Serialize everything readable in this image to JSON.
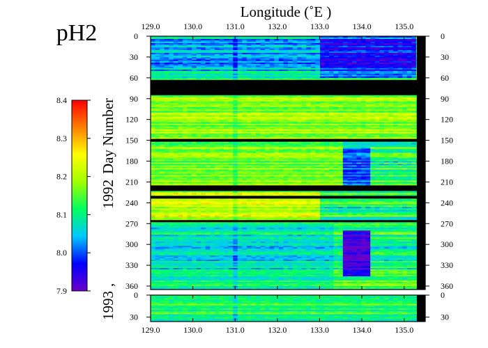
{
  "chart_data": {
    "type": "heatmap",
    "title": "pH2",
    "xlabel": "Longitude (˚E )",
    "ylabel_year1": "1992",
    "ylabel_sep": ",",
    "ylabel_dayword": "Day Number",
    "ylabel_year2": "1993",
    "x_range": [
      129.0,
      135.5
    ],
    "x_ticks": [
      "129.0",
      "130.0",
      "131.0",
      "132.0",
      "133.0",
      "134.0",
      "135.0"
    ],
    "panel_1992": {
      "day_range": [
        0,
        365
      ],
      "y_ticks": [
        "0",
        "30",
        "60",
        "90",
        "120",
        "150",
        "180",
        "210",
        "240",
        "270",
        "300",
        "330",
        "360"
      ]
    },
    "panel_1993": {
      "day_range": [
        0,
        36
      ],
      "y_ticks": [
        "0",
        "30"
      ]
    },
    "colorbar": {
      "range": [
        7.9,
        8.4
      ],
      "tick_labels": [
        "8.4",
        "8.3",
        "8.2",
        "8.1",
        "8.0",
        "7.9"
      ],
      "colors": [
        "#6a00c8",
        "#0000ff",
        "#00c8ff",
        "#00ff60",
        "#a0ff00",
        "#ffff00",
        "#ff8000",
        "#ff0000"
      ]
    },
    "no_data_day_ranges_1992": [
      [
        63,
        85
      ],
      [
        148,
        152
      ],
      [
        215,
        223
      ],
      [
        230,
        234
      ],
      [
        265,
        268
      ]
    ],
    "no_data_longitude_range": [
      135.3,
      135.5
    ],
    "value_regions_1992": [
      {
        "days": [
          0,
          60
        ],
        "lon": [
          129.0,
          133.0
        ],
        "ph": 8.05
      },
      {
        "days": [
          0,
          60
        ],
        "lon": [
          133.0,
          135.3
        ],
        "ph": 7.98
      },
      {
        "days": [
          85,
          148
        ],
        "lon": [
          129.0,
          135.3
        ],
        "ph": 8.18
      },
      {
        "days": [
          152,
          215
        ],
        "lon": [
          129.0,
          133.5
        ],
        "ph": 8.17
      },
      {
        "days": [
          160,
          215
        ],
        "lon": [
          133.5,
          134.2
        ],
        "ph": 8.0
      },
      {
        "days": [
          223,
          265
        ],
        "lon": [
          129.0,
          133.0
        ],
        "ph": 8.22
      },
      {
        "days": [
          270,
          365
        ],
        "lon": [
          129.0,
          133.3
        ],
        "ph": 8.08
      },
      {
        "days": [
          280,
          345
        ],
        "lon": [
          133.6,
          134.2
        ],
        "ph": 7.93
      }
    ],
    "value_regions_1993": [
      {
        "days": [
          0,
          36
        ],
        "lon": [
          129.0,
          135.3
        ],
        "ph": 8.12
      }
    ]
  }
}
